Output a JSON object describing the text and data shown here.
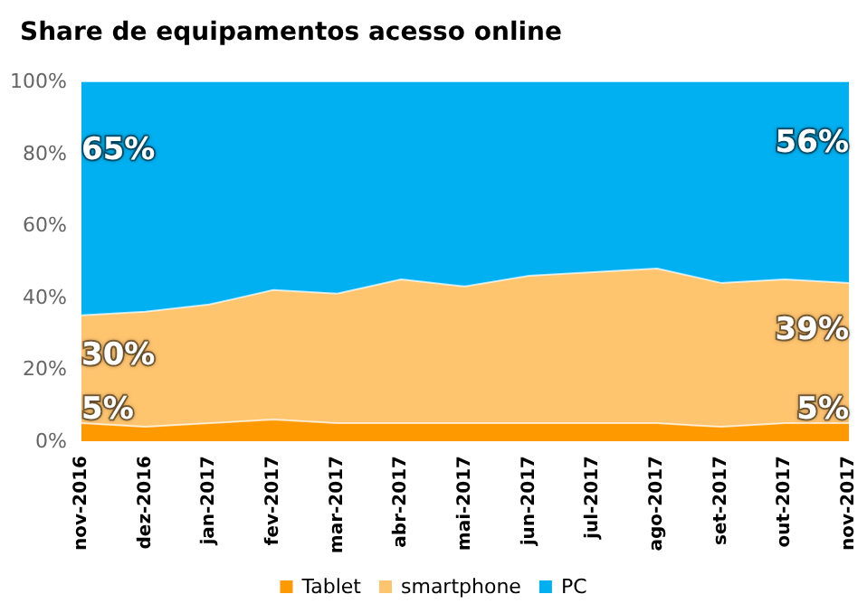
{
  "chart_data": {
    "type": "area",
    "stacked": true,
    "title": "Share de equipamentos acesso online",
    "categories": [
      "nov-2016",
      "dez-2016",
      "jan-2017",
      "fev-2017",
      "mar-2017",
      "abr-2017",
      "mai-2017",
      "jun-2017",
      "jul-2017",
      "ago-2017",
      "set-2017",
      "out-2017",
      "nov-2017"
    ],
    "series": [
      {
        "name": "Tablet",
        "color": "#ff9900",
        "values": [
          5,
          4,
          5,
          6,
          5,
          5,
          5,
          5,
          5,
          5,
          4,
          5,
          5
        ],
        "value_labels": [
          "5%",
          null,
          null,
          null,
          null,
          null,
          null,
          null,
          null,
          null,
          null,
          null,
          "5%"
        ]
      },
      {
        "name": "smartphone",
        "color": "#ffc46e",
        "values": [
          30,
          32,
          33,
          36,
          36,
          40,
          38,
          41,
          42,
          43,
          40,
          40,
          39
        ],
        "value_labels": [
          "30%",
          null,
          null,
          null,
          null,
          null,
          null,
          null,
          null,
          null,
          null,
          null,
          "39%"
        ]
      },
      {
        "name": "PC",
        "color": "#00b0f0",
        "values": [
          65,
          64,
          62,
          58,
          59,
          55,
          57,
          54,
          53,
          52,
          56,
          55,
          56
        ],
        "value_labels": [
          "65%",
          null,
          null,
          null,
          null,
          null,
          null,
          null,
          null,
          null,
          null,
          null,
          "56%"
        ]
      }
    ],
    "ylim": [
      0,
      100
    ],
    "yticks": [
      {
        "value": 0,
        "label": "0%"
      },
      {
        "value": 20,
        "label": "20%"
      },
      {
        "value": 40,
        "label": "40%"
      },
      {
        "value": 60,
        "label": "60%"
      },
      {
        "value": 80,
        "label": "80%"
      },
      {
        "value": 100,
        "label": "100%"
      }
    ],
    "legend": "bottom"
  }
}
